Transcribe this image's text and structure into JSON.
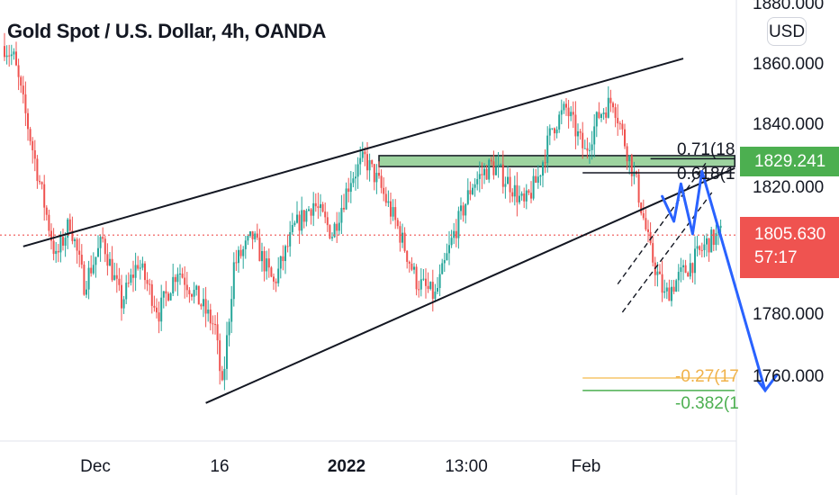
{
  "header": {
    "title": "Gold Spot / U.S. Dollar, 4h, OANDA",
    "currency": "USD"
  },
  "colors": {
    "up": "#26a69a",
    "down": "#ef5350",
    "zone": "#4caf50",
    "forecast": "#2962ff",
    "fib_orange": "#f5c66a",
    "fib_green": "#4caf50",
    "dotted": "#ef5350"
  },
  "price_axis": {
    "ticks": [
      "1880.000",
      "1860.000",
      "1840.000",
      "1820.000",
      "1780.000",
      "1760.000"
    ]
  },
  "time_axis": {
    "labels": [
      "Dec",
      "16",
      "2022",
      "13:00",
      "Feb"
    ]
  },
  "price_labels": {
    "zone": {
      "value": "1829.241"
    },
    "current": {
      "value": "1805.630",
      "countdown": "57:17"
    }
  },
  "fib_labels": {
    "f071": "0.71(18",
    "f0618": "0.618(1",
    "fm027": "-0.27(17",
    "fm0382": "-0.382(1"
  },
  "chart_data": {
    "type": "candlestick",
    "symbol": "XAUUSD",
    "timeframe": "4h",
    "y_range": [
      1748,
      1884
    ],
    "path_keypoints": [
      {
        "t": 0,
        "p": 1866
      },
      {
        "t": 4,
        "p": 1862
      },
      {
        "t": 14,
        "p": 1826
      },
      {
        "t": 22,
        "p": 1798
      },
      {
        "t": 28,
        "p": 1810
      },
      {
        "t": 34,
        "p": 1790
      },
      {
        "t": 42,
        "p": 1804
      },
      {
        "t": 50,
        "p": 1784
      },
      {
        "t": 57,
        "p": 1797
      },
      {
        "t": 66,
        "p": 1781
      },
      {
        "t": 74,
        "p": 1795
      },
      {
        "t": 82,
        "p": 1786
      },
      {
        "t": 90,
        "p": 1776
      },
      {
        "t": 93,
        "p": 1756
      },
      {
        "t": 98,
        "p": 1796
      },
      {
        "t": 106,
        "p": 1805
      },
      {
        "t": 115,
        "p": 1790
      },
      {
        "t": 124,
        "p": 1808
      },
      {
        "t": 132,
        "p": 1816
      },
      {
        "t": 140,
        "p": 1806
      },
      {
        "t": 148,
        "p": 1824
      },
      {
        "t": 154,
        "p": 1830
      },
      {
        "t": 160,
        "p": 1822
      },
      {
        "t": 168,
        "p": 1808
      },
      {
        "t": 176,
        "p": 1791
      },
      {
        "t": 184,
        "p": 1786
      },
      {
        "t": 192,
        "p": 1806
      },
      {
        "t": 200,
        "p": 1822
      },
      {
        "t": 208,
        "p": 1828
      },
      {
        "t": 216,
        "p": 1822
      },
      {
        "t": 222,
        "p": 1815
      },
      {
        "t": 228,
        "p": 1824
      },
      {
        "t": 234,
        "p": 1840
      },
      {
        "t": 240,
        "p": 1846
      },
      {
        "t": 248,
        "p": 1832
      },
      {
        "t": 254,
        "p": 1844
      },
      {
        "t": 260,
        "p": 1849
      },
      {
        "t": 264,
        "p": 1838
      },
      {
        "t": 270,
        "p": 1822
      },
      {
        "t": 276,
        "p": 1800
      },
      {
        "t": 282,
        "p": 1786
      },
      {
        "t": 288,
        "p": 1792
      },
      {
        "t": 294,
        "p": 1797
      },
      {
        "t": 300,
        "p": 1803
      },
      {
        "t": 306,
        "p": 1806
      }
    ],
    "trendlines": [
      {
        "name": "upper-wedge-line",
        "from": {
          "t": 8,
          "p": 1802
        },
        "to": {
          "t": 290,
          "p": 1862
        }
      },
      {
        "name": "lower-wedge-line",
        "from": {
          "t": 86,
          "p": 1752
        },
        "to": {
          "t": 312,
          "p": 1827
        }
      }
    ],
    "resistance_zone": {
      "top": 1831,
      "bottom": 1827.5,
      "from_t": 160,
      "to_t": 312
    },
    "fib_levels": [
      {
        "name": "0.71",
        "price": 1830,
        "color": "black",
        "from_t": 276,
        "to_t": 312
      },
      {
        "name": "0.618",
        "price": 1825.5,
        "color": "black",
        "from_t": 247,
        "to_t": 312
      },
      {
        "name": "-0.27",
        "price": 1760,
        "color": "orange",
        "from_t": 247,
        "to_t": 312
      },
      {
        "name": "-0.382",
        "price": 1756,
        "color": "green",
        "from_t": 247,
        "to_t": 312
      }
    ],
    "channel": [
      {
        "from": {
          "t": 262,
          "p": 1790
        },
        "to": {
          "t": 300,
          "p": 1829
        }
      },
      {
        "from": {
          "t": 264,
          "p": 1781
        },
        "to": {
          "t": 303,
          "p": 1820
        }
      }
    ],
    "forecast_path": [
      {
        "t": 281,
        "p": 1818
      },
      {
        "t": 286,
        "p": 1810
      },
      {
        "t": 289,
        "p": 1822
      },
      {
        "t": 294,
        "p": 1806
      },
      {
        "t": 298,
        "p": 1826
      },
      {
        "t": 325,
        "p": 1756
      },
      {
        "t": 322,
        "p": 1759
      },
      {
        "t": 330,
        "p": 1761
      }
    ],
    "current_price_line": 1805.63
  }
}
